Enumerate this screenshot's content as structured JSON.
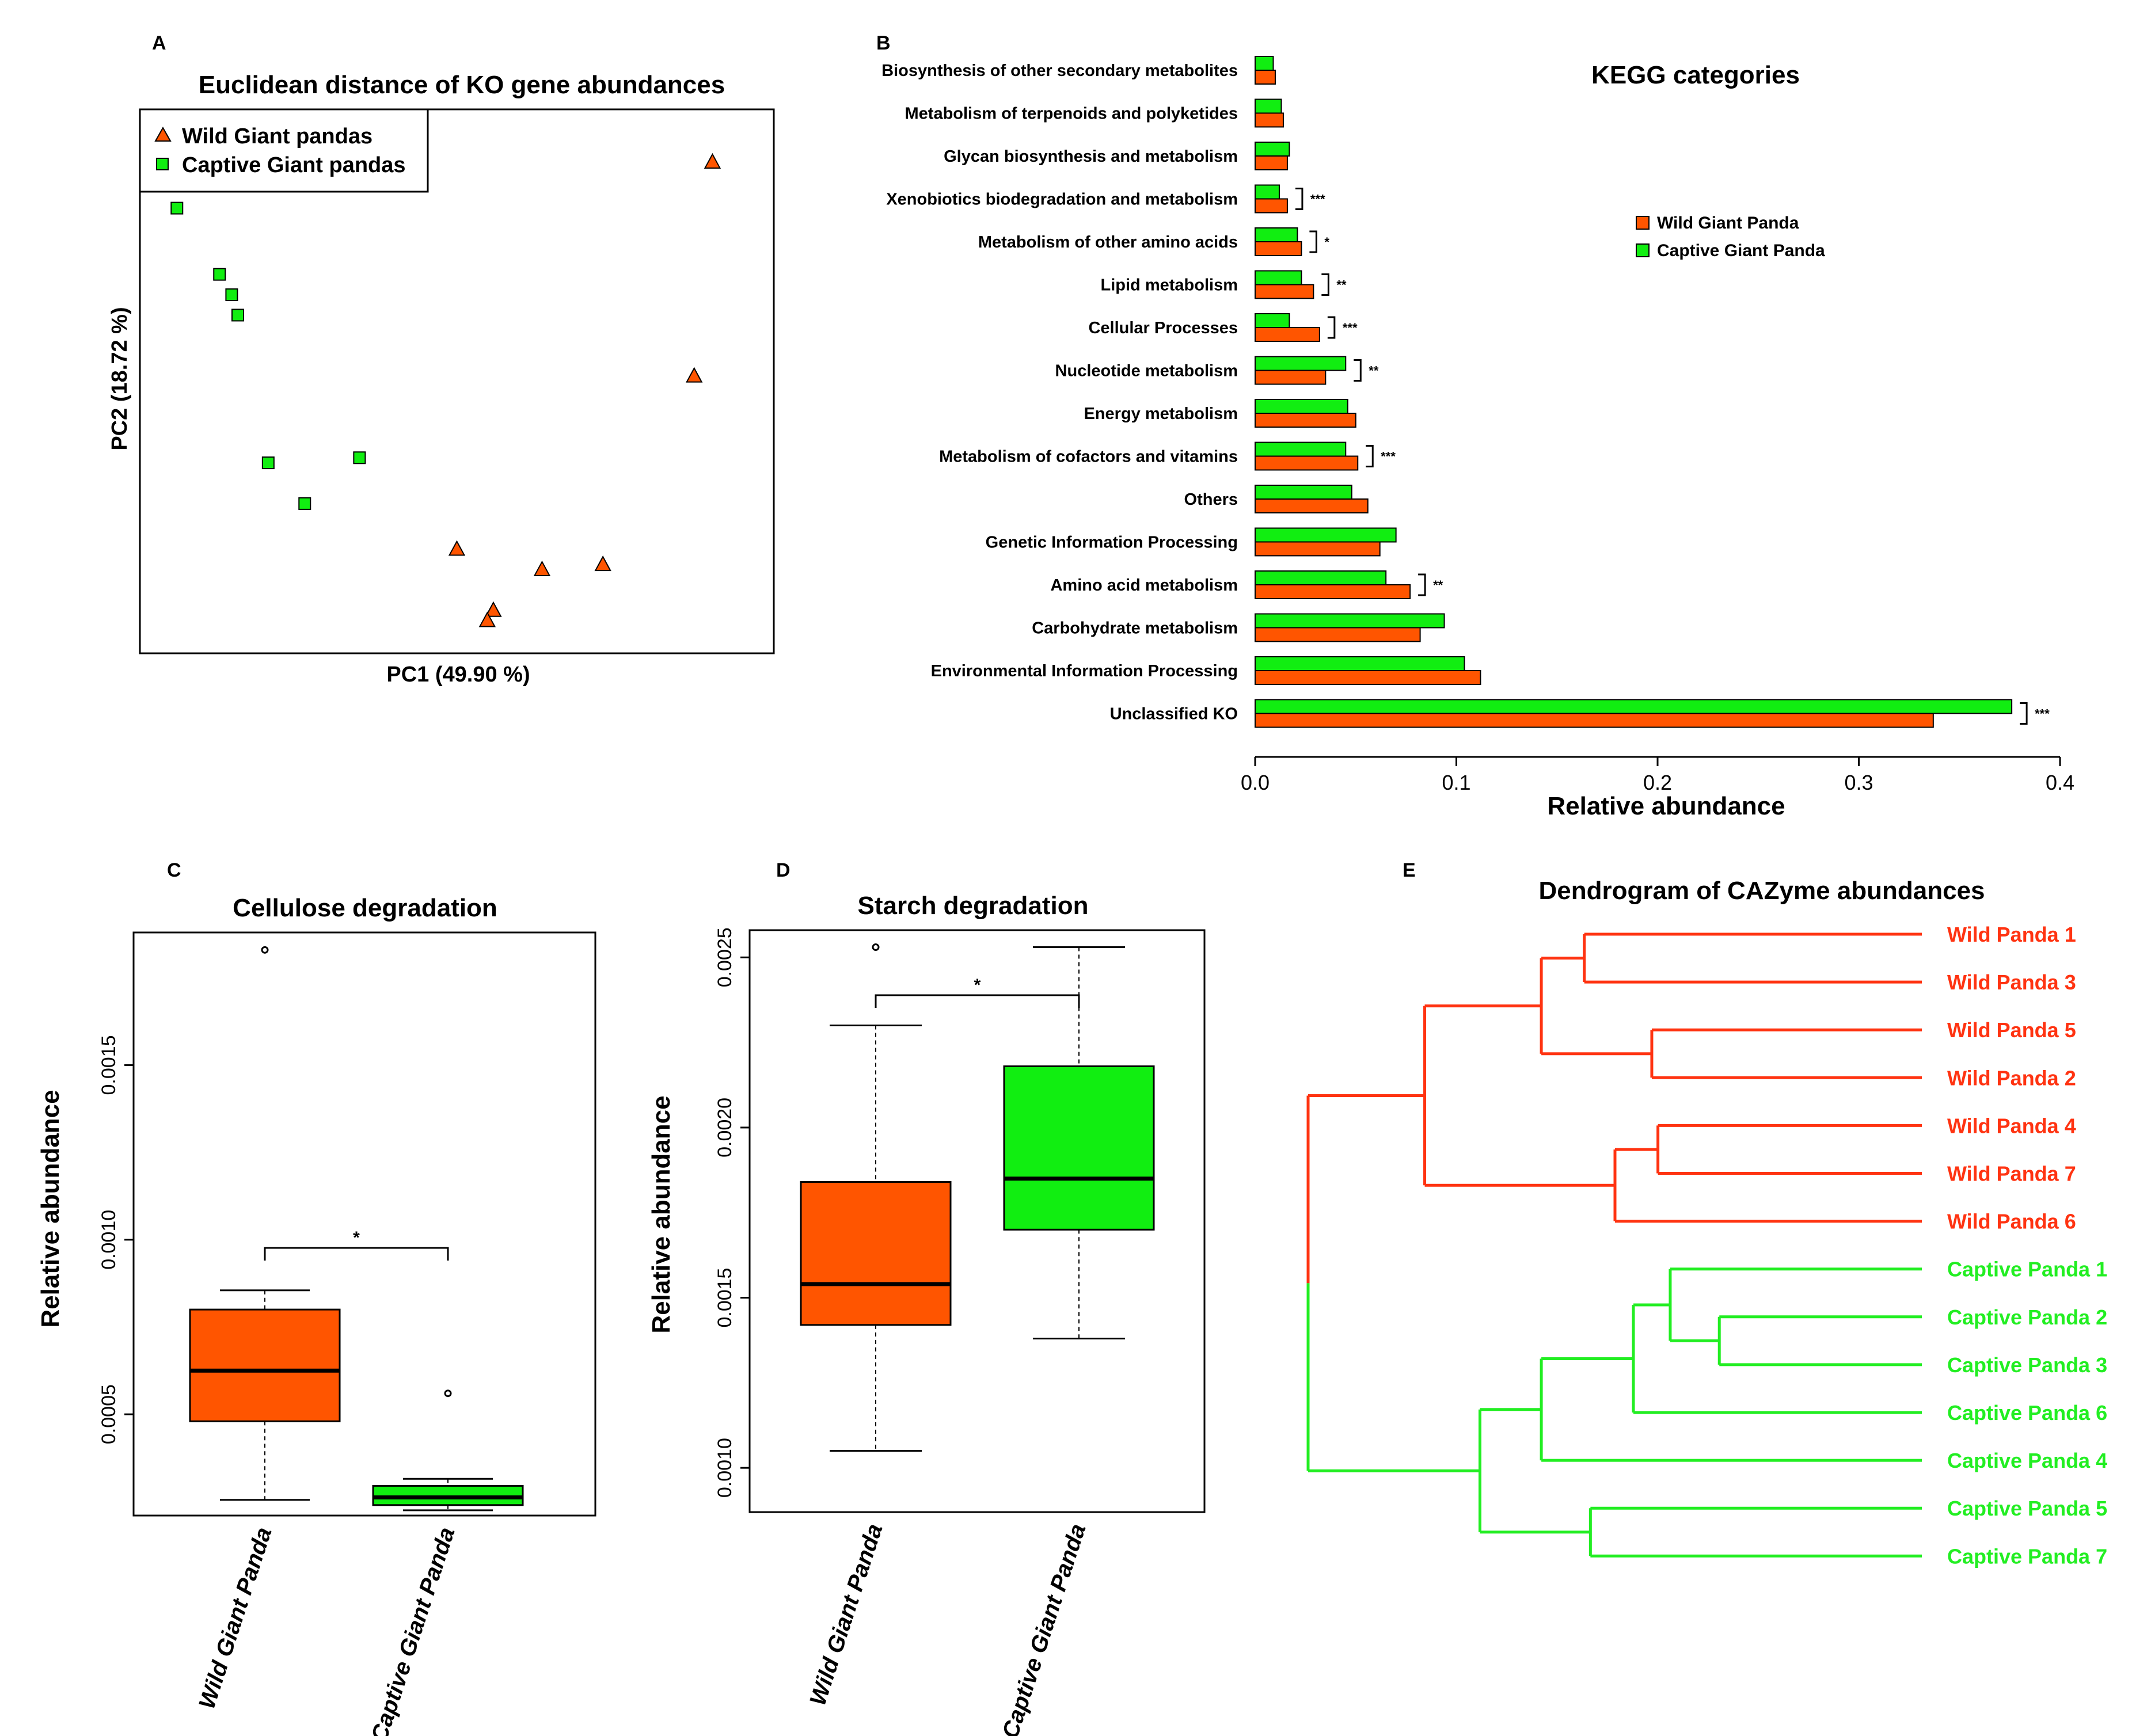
{
  "colors": {
    "wild": "#ff5500",
    "captive": "#11ee11",
    "wild_line": "#ff3311",
    "captive_line": "#22ee22",
    "ink": "#000000"
  },
  "chart_data": [
    {
      "panel": "A",
      "type": "scatter",
      "title": "Euclidean distance of KO gene abundances",
      "xlabel": "PC1 (49.90 %)",
      "ylabel": "PC2 (18.72 %)",
      "legend": [
        "Wild Giant pandas",
        "Captive Giant pandas"
      ],
      "legend_position": "top-left",
      "xlim": [
        0,
        100
      ],
      "ylim": [
        0,
        100
      ],
      "series": [
        {
          "name": "Wild Giant pandas",
          "marker": "triangle",
          "points": [
            [
              92,
              93
            ],
            [
              89,
              51
            ],
            [
              50,
              17
            ],
            [
              64,
              13
            ],
            [
              74,
              14
            ],
            [
              56,
              5
            ],
            [
              55,
              3
            ]
          ]
        },
        {
          "name": "Captive Giant pandas",
          "marker": "square",
          "points": [
            [
              4,
              84
            ],
            [
              11,
              71
            ],
            [
              13,
              67
            ],
            [
              14,
              63
            ],
            [
              19,
              34
            ],
            [
              34,
              35
            ],
            [
              25,
              26
            ]
          ]
        }
      ]
    },
    {
      "panel": "B",
      "type": "bar",
      "orientation": "horizontal",
      "title": "KEGG categories",
      "xlabel": "Relative abundance",
      "xlim": [
        0,
        0.4
      ],
      "xticks": [
        "0.0",
        "0.1",
        "0.2",
        "0.3",
        "0.4"
      ],
      "legend": [
        "Wild Giant Panda",
        "Captive Giant Panda"
      ],
      "legend_position": "top-right",
      "categories": [
        "Biosynthesis of other secondary metabolites",
        "Metabolism of terpenoids and polyketides",
        "Glycan biosynthesis and metabolism",
        "Xenobiotics biodegradation and metabolism",
        "Metabolism of other amino acids",
        "Lipid metabolism",
        "Cellular Processes",
        "Nucleotide metabolism",
        "Energy metabolism",
        "Metabolism of cofactors and vitamins",
        "Others",
        "Genetic Information Processing",
        "Amino acid metabolism",
        "Carbohydrate metabolism",
        "Environmental Information Processing",
        "Unclassified KO"
      ],
      "series": [
        {
          "name": "Captive Giant Panda",
          "values": [
            0.009,
            0.013,
            0.017,
            0.012,
            0.021,
            0.023,
            0.017,
            0.045,
            0.046,
            0.045,
            0.048,
            0.07,
            0.065,
            0.094,
            0.104,
            0.376
          ]
        },
        {
          "name": "Wild Giant Panda",
          "values": [
            0.01,
            0.014,
            0.016,
            0.016,
            0.023,
            0.029,
            0.032,
            0.035,
            0.05,
            0.051,
            0.056,
            0.062,
            0.077,
            0.082,
            0.112,
            0.337
          ]
        }
      ],
      "significance": [
        "",
        "",
        "",
        "***",
        "*",
        "**",
        "***",
        "**",
        "",
        "***",
        "",
        "",
        "**",
        "",
        "",
        "***"
      ]
    },
    {
      "panel": "C",
      "type": "box",
      "title": "Cellulose degradation",
      "ylabel": "Relative abundance",
      "ylim": [
        0.00021,
        0.00188
      ],
      "yticks": [
        "0.0005",
        "0.0010",
        "0.0015"
      ],
      "categories": [
        "Wild Giant Panda",
        "Captive Giant Panda"
      ],
      "boxes": [
        {
          "whisker_low": 0.000255,
          "q1": 0.00048,
          "median": 0.000625,
          "q3": 0.0008,
          "whisker_high": 0.000855,
          "outliers": [
            0.00183
          ]
        },
        {
          "whisker_low": 0.000225,
          "q1": 0.00024,
          "median": 0.000262,
          "q3": 0.000295,
          "whisker_high": 0.000315,
          "outliers": [
            0.00056
          ]
        }
      ],
      "significance": "*"
    },
    {
      "panel": "D",
      "type": "box",
      "title": "Starch degradation",
      "ylabel": "Relative abundance",
      "ylim": [
        0.00087,
        0.00258
      ],
      "yticks": [
        "0.0010",
        "0.0015",
        "0.0020",
        "0.0025"
      ],
      "categories": [
        "Wild Giant Panda",
        "Captive Giant Panda"
      ],
      "boxes": [
        {
          "whisker_low": 0.00105,
          "q1": 0.00142,
          "median": 0.00154,
          "q3": 0.00184,
          "whisker_high": 0.0023,
          "outliers": [
            0.00253
          ]
        },
        {
          "whisker_low": 0.00138,
          "q1": 0.0017,
          "median": 0.00185,
          "q3": 0.00218,
          "whisker_high": 0.00253,
          "outliers": []
        }
      ],
      "significance": "*"
    },
    {
      "panel": "E",
      "type": "dendrogram",
      "title": "Dendrogram of CAZyme abundances",
      "leaves": [
        "Wild Panda 1",
        "Wild Panda 3",
        "Wild Panda 5",
        "Wild Panda 2",
        "Wild Panda 4",
        "Wild Panda 7",
        "Wild Panda 6",
        "Captive Panda 1",
        "Captive Panda 2",
        "Captive Panda 3",
        "Captive Panda 6",
        "Captive Panda 4",
        "Captive Panda 5",
        "Captive Panda 7"
      ],
      "leaf_groups": [
        "wild",
        "wild",
        "wild",
        "wild",
        "wild",
        "wild",
        "wild",
        "captive",
        "captive",
        "captive",
        "captive",
        "captive",
        "captive",
        "captive"
      ],
      "merges": [
        {
          "a": 0,
          "b": 1,
          "height": 0.55
        },
        {
          "a": 2,
          "b": 3,
          "height": 0.44
        },
        {
          "a": 14,
          "b": 15,
          "height": 0.62
        },
        {
          "a": 4,
          "b": 5,
          "height": 0.43
        },
        {
          "a": 17,
          "b": 6,
          "height": 0.5
        },
        {
          "a": 16,
          "b": 18,
          "height": 0.81
        },
        {
          "a": 8,
          "b": 9,
          "height": 0.33
        },
        {
          "a": 7,
          "b": 20,
          "height": 0.41
        },
        {
          "a": 21,
          "b": 10,
          "height": 0.47
        },
        {
          "a": 22,
          "b": 11,
          "height": 0.62
        },
        {
          "a": 12,
          "b": 13,
          "height": 0.54
        },
        {
          "a": 23,
          "b": 24,
          "height": 0.72
        },
        {
          "a": 19,
          "b": 25,
          "height": 1.0
        }
      ]
    }
  ],
  "panel_labels": [
    "A",
    "B",
    "C",
    "D",
    "E"
  ]
}
